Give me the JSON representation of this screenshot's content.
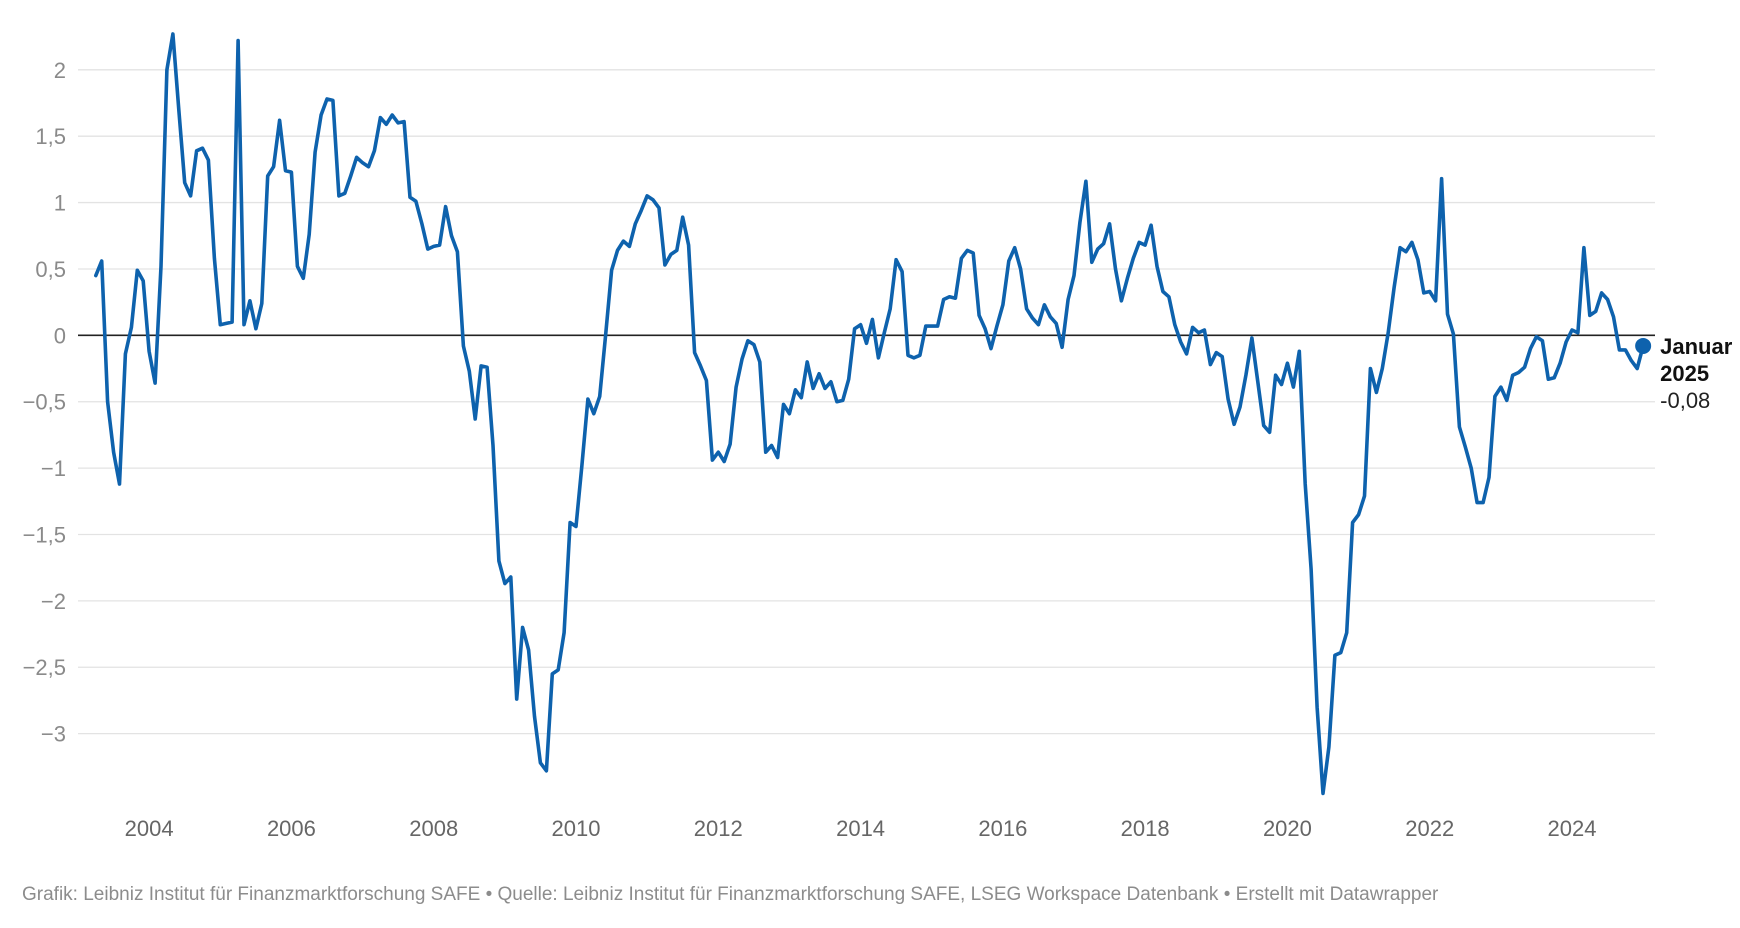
{
  "chart_data": {
    "type": "line",
    "title": "",
    "xlabel": "",
    "ylabel": "",
    "xlim": [
      "2003-01",
      "2025-03"
    ],
    "ylim": [
      -3.5,
      2.3
    ],
    "yticks": [
      2,
      1.5,
      1,
      0.5,
      0,
      -0.5,
      -1,
      -1.5,
      -2,
      -2.5,
      -3
    ],
    "ytick_labels": [
      "2",
      "1,5",
      "1",
      "0,5",
      "0",
      "−0,5",
      "−1",
      "−1,5",
      "−2",
      "−2,5",
      "−3"
    ],
    "xticks": [
      2004,
      2006,
      2008,
      2010,
      2012,
      2014,
      2016,
      2018,
      2020,
      2022,
      2024
    ],
    "xtick_labels": [
      "2004",
      "2006",
      "2008",
      "2010",
      "2012",
      "2014",
      "2016",
      "2018",
      "2020",
      "2022",
      "2024"
    ],
    "grid": true,
    "baseline": 0,
    "series": [
      {
        "color": "#0e62ad",
        "x": [
          "2003-04",
          "2003-05",
          "2003-06",
          "2003-07",
          "2003-08",
          "2003-09",
          "2003-10",
          "2003-11",
          "2003-12",
          "2004-01",
          "2004-02",
          "2004-03",
          "2004-04",
          "2004-05",
          "2004-06",
          "2004-07",
          "2004-08",
          "2004-09",
          "2004-10",
          "2004-11",
          "2004-12",
          "2005-01",
          "2005-02",
          "2005-03",
          "2005-04",
          "2005-05",
          "2005-06",
          "2005-07",
          "2005-08",
          "2005-09",
          "2005-10",
          "2005-11",
          "2005-12",
          "2006-01",
          "2006-02",
          "2006-03",
          "2006-04",
          "2006-05",
          "2006-06",
          "2006-07",
          "2006-08",
          "2006-09",
          "2006-10",
          "2006-11",
          "2006-12",
          "2007-01",
          "2007-02",
          "2007-03",
          "2007-04",
          "2007-05",
          "2007-06",
          "2007-07",
          "2007-08",
          "2007-09",
          "2007-10",
          "2007-11",
          "2007-12",
          "2008-01",
          "2008-02",
          "2008-03",
          "2008-04",
          "2008-05",
          "2008-06",
          "2008-07",
          "2008-08",
          "2008-09",
          "2008-10",
          "2008-11",
          "2008-12",
          "2009-01",
          "2009-02",
          "2009-03",
          "2009-04",
          "2009-05",
          "2009-06",
          "2009-07",
          "2009-08",
          "2009-09",
          "2009-10",
          "2009-11",
          "2009-12",
          "2010-01",
          "2010-02",
          "2010-03",
          "2010-04",
          "2010-05",
          "2010-06",
          "2010-07",
          "2010-08",
          "2010-09",
          "2010-10",
          "2010-11",
          "2010-12",
          "2011-01",
          "2011-02",
          "2011-03",
          "2011-04",
          "2011-05",
          "2011-06",
          "2011-07",
          "2011-08",
          "2011-09",
          "2011-10",
          "2011-11",
          "2011-12",
          "2012-01",
          "2012-02",
          "2012-03",
          "2012-04",
          "2012-05",
          "2012-06",
          "2012-07",
          "2012-08",
          "2012-09",
          "2012-10",
          "2012-11",
          "2012-12",
          "2013-01",
          "2013-02",
          "2013-03",
          "2013-04",
          "2013-05",
          "2013-06",
          "2013-07",
          "2013-08",
          "2013-09",
          "2013-10",
          "2013-11",
          "2013-12",
          "2014-01",
          "2014-02",
          "2014-03",
          "2014-04",
          "2014-05",
          "2014-06",
          "2014-07",
          "2014-08",
          "2014-09",
          "2014-10",
          "2014-11",
          "2014-12",
          "2015-01",
          "2015-02",
          "2015-03",
          "2015-04",
          "2015-05",
          "2015-06",
          "2015-07",
          "2015-08",
          "2015-09",
          "2015-10",
          "2015-11",
          "2015-12",
          "2016-01",
          "2016-02",
          "2016-03",
          "2016-04",
          "2016-05",
          "2016-06",
          "2016-07",
          "2016-08",
          "2016-09",
          "2016-10",
          "2016-11",
          "2016-12",
          "2017-01",
          "2017-02",
          "2017-03",
          "2017-04",
          "2017-05",
          "2017-06",
          "2017-07",
          "2017-08",
          "2017-09",
          "2017-10",
          "2017-11",
          "2017-12",
          "2018-01",
          "2018-02",
          "2018-03",
          "2018-04",
          "2018-05",
          "2018-06",
          "2018-07",
          "2018-08",
          "2018-09",
          "2018-10",
          "2018-11",
          "2018-12",
          "2019-01",
          "2019-02",
          "2019-03",
          "2019-04",
          "2019-05",
          "2019-06",
          "2019-07",
          "2019-08",
          "2019-09",
          "2019-10",
          "2019-11",
          "2019-12",
          "2020-01",
          "2020-02",
          "2020-03",
          "2020-04",
          "2020-05",
          "2020-06",
          "2020-07",
          "2020-08",
          "2020-09",
          "2020-10",
          "2020-11",
          "2020-12",
          "2021-01",
          "2021-02",
          "2021-03",
          "2021-04",
          "2021-05",
          "2021-06",
          "2021-07",
          "2021-08",
          "2021-09",
          "2021-10",
          "2021-11",
          "2021-12",
          "2022-01",
          "2022-02",
          "2022-03",
          "2022-04",
          "2022-05",
          "2022-06",
          "2022-07",
          "2022-08",
          "2022-09",
          "2022-10",
          "2022-11",
          "2022-12",
          "2023-01",
          "2023-02",
          "2023-03",
          "2023-04",
          "2023-05",
          "2023-06",
          "2023-07",
          "2023-08",
          "2023-09",
          "2023-10",
          "2023-11",
          "2023-12",
          "2024-01",
          "2024-02",
          "2024-03",
          "2024-04",
          "2024-05",
          "2024-06",
          "2024-07",
          "2024-08",
          "2024-09",
          "2024-10",
          "2024-11",
          "2024-12",
          "2025-01"
        ],
        "y": [
          0.45,
          0.56,
          -0.5,
          -0.88,
          -1.12,
          -0.14,
          0.06,
          0.49,
          0.41,
          -0.12,
          -0.36,
          0.52,
          2.0,
          2.27,
          1.7,
          1.15,
          1.05,
          1.39,
          1.41,
          1.32,
          0.58,
          0.08,
          0.09,
          0.1,
          2.22,
          0.08,
          0.26,
          0.05,
          0.24,
          1.2,
          1.27,
          1.62,
          1.24,
          1.23,
          0.52,
          0.43,
          0.76,
          1.38,
          1.66,
          1.78,
          1.77,
          1.05,
          1.07,
          1.2,
          1.34,
          1.3,
          1.27,
          1.39,
          1.64,
          1.59,
          1.66,
          1.6,
          1.61,
          1.04,
          1.01,
          0.84,
          0.65,
          0.67,
          0.68,
          0.97,
          0.75,
          0.63,
          -0.08,
          -0.27,
          -0.63,
          -0.23,
          -0.24,
          -0.83,
          -1.7,
          -1.87,
          -1.82,
          -2.74,
          -2.2,
          -2.37,
          -2.87,
          -3.22,
          -3.28,
          -2.55,
          -2.52,
          -2.24,
          -1.41,
          -1.44,
          -0.98,
          -0.48,
          -0.59,
          -0.46,
          0.0,
          0.49,
          0.64,
          0.71,
          0.67,
          0.84,
          0.94,
          1.05,
          1.02,
          0.96,
          0.53,
          0.61,
          0.64,
          0.89,
          0.68,
          -0.13,
          -0.23,
          -0.34,
          -0.94,
          -0.88,
          -0.95,
          -0.82,
          -0.39,
          -0.18,
          -0.04,
          -0.07,
          -0.2,
          -0.88,
          -0.83,
          -0.92,
          -0.52,
          -0.59,
          -0.41,
          -0.47,
          -0.2,
          -0.4,
          -0.29,
          -0.4,
          -0.35,
          -0.5,
          -0.49,
          -0.33,
          0.05,
          0.08,
          -0.06,
          0.12,
          -0.17,
          0.02,
          0.2,
          0.57,
          0.48,
          -0.15,
          -0.17,
          -0.15,
          0.07,
          0.07,
          0.07,
          0.27,
          0.29,
          0.28,
          0.58,
          0.64,
          0.62,
          0.15,
          0.05,
          -0.1,
          0.07,
          0.23,
          0.56,
          0.66,
          0.5,
          0.2,
          0.13,
          0.08,
          0.23,
          0.14,
          0.09,
          -0.09,
          0.27,
          0.45,
          0.85,
          1.16,
          0.55,
          0.65,
          0.69,
          0.84,
          0.5,
          0.26,
          0.43,
          0.58,
          0.7,
          0.68,
          0.83,
          0.52,
          0.33,
          0.29,
          0.08,
          -0.05,
          -0.14,
          0.06,
          0.02,
          0.04,
          -0.22,
          -0.13,
          -0.16,
          -0.48,
          -0.67,
          -0.54,
          -0.3,
          -0.02,
          -0.35,
          -0.68,
          -0.73,
          -0.3,
          -0.37,
          -0.21,
          -0.39,
          -0.12,
          -1.12,
          -1.76,
          -2.8,
          -3.45,
          -3.1,
          -2.41,
          -2.39,
          -2.24,
          -1.41,
          -1.35,
          -1.21,
          -0.25,
          -0.43,
          -0.25,
          0.02,
          0.36,
          0.66,
          0.63,
          0.7,
          0.57,
          0.32,
          0.33,
          0.26,
          1.18,
          0.16,
          0.01,
          -0.69,
          -0.84,
          -1.0,
          -1.26,
          -1.26,
          -1.07,
          -0.46,
          -0.39,
          -0.49,
          -0.3,
          -0.28,
          -0.24,
          -0.1,
          -0.01,
          -0.04,
          -0.33,
          -0.32,
          -0.21,
          -0.05,
          0.04,
          0.02,
          0.66,
          0.15,
          0.18,
          0.32,
          0.27,
          0.14,
          -0.11,
          -0.11,
          -0.19,
          -0.25,
          -0.08
        ]
      }
    ],
    "end_annotation": {
      "label_line1": "Januar",
      "label_line2": "2025",
      "value_text": "-0,08",
      "x": "2025-01",
      "y": -0.08
    }
  },
  "footer": {
    "text": "Grafik: Leibniz Institut für Finanzmarktforschung SAFE • Quelle: Leibniz Institut für Finanzmarktforschung SAFE, LSEG Workspace Datenbank • Erstellt mit Datawrapper"
  }
}
